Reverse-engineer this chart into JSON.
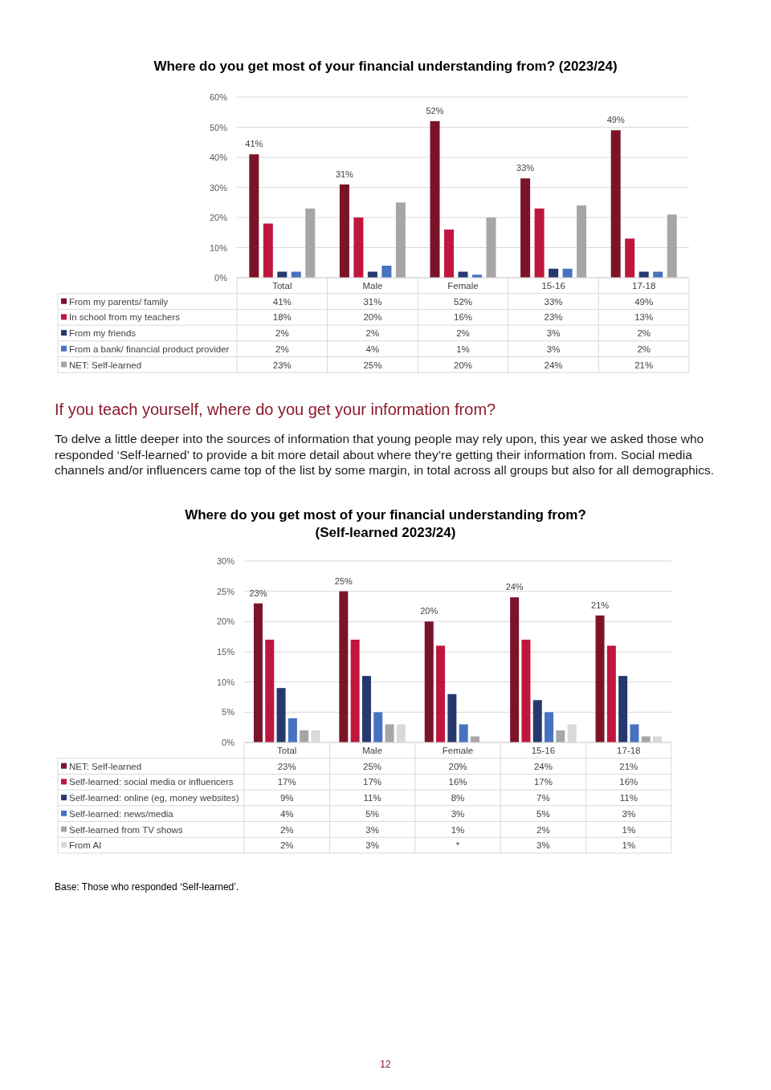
{
  "chart_data": [
    {
      "type": "bar",
      "title": "Where do you get most of your financial understanding from? (2023/24)",
      "categories": [
        "Total",
        "Male",
        "Female",
        "15-16",
        "17-18"
      ],
      "ylim": [
        0,
        60
      ],
      "yticks": [
        {
          "value": 0,
          "label": "0%"
        },
        {
          "value": 10,
          "label": "10%"
        },
        {
          "value": 20,
          "label": "20%"
        },
        {
          "value": 30,
          "label": "30%"
        },
        {
          "value": 40,
          "label": "40%"
        },
        {
          "value": 50,
          "label": "50%"
        },
        {
          "value": 60,
          "label": "60%"
        }
      ],
      "grid": "y",
      "legend": "bottom",
      "series": [
        {
          "name": "From my parents/ family",
          "color": "#7b1428",
          "values": [
            41,
            31,
            52,
            33,
            49
          ],
          "value_labels": [
            "41%",
            "31%",
            "52%",
            "33%",
            "49%"
          ]
        },
        {
          "name": "In school from my teachers",
          "color": "#c0163e",
          "values": [
            18,
            20,
            16,
            23,
            13
          ],
          "value_labels": [
            "18%",
            "20%",
            "16%",
            "23%",
            "13%"
          ]
        },
        {
          "name": "From my friends",
          "color": "#26386e",
          "values": [
            2,
            2,
            2,
            3,
            2
          ],
          "value_labels": [
            "2%",
            "2%",
            "2%",
            "3%",
            "2%"
          ]
        },
        {
          "name": "From a bank/ financial product provider",
          "color": "#4672c0",
          "values": [
            2,
            4,
            1,
            3,
            2
          ],
          "value_labels": [
            "2%",
            "4%",
            "1%",
            "3%",
            "2%"
          ]
        },
        {
          "name": "NET: Self-learned",
          "color": "#a6a6a6",
          "values": [
            23,
            25,
            20,
            24,
            21
          ],
          "value_labels": [
            "23%",
            "25%",
            "20%",
            "24%",
            "21%"
          ]
        }
      ]
    },
    {
      "type": "bar",
      "title": "Where do you get most of your financial understanding from? (Self-learned 2023/24)",
      "categories": [
        "Total",
        "Male",
        "Female",
        "15-16",
        "17-18"
      ],
      "ylim": [
        0,
        30
      ],
      "yticks": [
        {
          "value": 0,
          "label": "0%"
        },
        {
          "value": 5,
          "label": "5%"
        },
        {
          "value": 10,
          "label": "10%"
        },
        {
          "value": 15,
          "label": "15%"
        },
        {
          "value": 20,
          "label": "20%"
        },
        {
          "value": 25,
          "label": "25%"
        },
        {
          "value": 30,
          "label": "30%"
        }
      ],
      "grid": "y",
      "legend": "bottom",
      "annotations": [
        "If you teach yourself, where do you get your information from?",
        "To delve a little deeper into the sources of information that young people may rely upon, this year we asked those who responded ‘Self-learned’ to provide a bit more detail about where they’re getting their information from. Social media channels and/or influencers came top of the list by some margin, in total across all groups but also for all demographics.",
        "Base: Those who responded ‘Self-learned’.",
        "12"
      ],
      "series": [
        {
          "name": "NET: Self-learned",
          "color": "#7b1428",
          "values": [
            23,
            25,
            20,
            24,
            21
          ],
          "value_labels": [
            "23%",
            "25%",
            "20%",
            "24%",
            "21%"
          ]
        },
        {
          "name": "Self-learned: social media or influencers",
          "color": "#c0163e",
          "values": [
            17,
            17,
            16,
            17,
            16
          ],
          "value_labels": [
            "17%",
            "17%",
            "16%",
            "17%",
            "16%"
          ]
        },
        {
          "name": "Self-learned: online (eg, money websites)",
          "color": "#26386e",
          "values": [
            9,
            11,
            8,
            7,
            11
          ],
          "value_labels": [
            "9%",
            "11%",
            "8%",
            "7%",
            "11%"
          ]
        },
        {
          "name": "Self-learned:  news/media",
          "color": "#4672c0",
          "values": [
            4,
            5,
            3,
            5,
            3
          ],
          "value_labels": [
            "4%",
            "5%",
            "3%",
            "5%",
            "3%"
          ]
        },
        {
          "name": "Self-learned from TV shows",
          "color": "#a6a6a6",
          "values": [
            2,
            3,
            1,
            2,
            1
          ],
          "value_labels": [
            "2%",
            "3%",
            "1%",
            "2%",
            "1%"
          ]
        },
        {
          "name": "From AI",
          "color": "#d9d9d9",
          "values": [
            2,
            3,
            null,
            3,
            1
          ],
          "value_labels": [
            "2%",
            "3%",
            "*",
            "3%",
            "1%"
          ]
        }
      ]
    }
  ]
}
